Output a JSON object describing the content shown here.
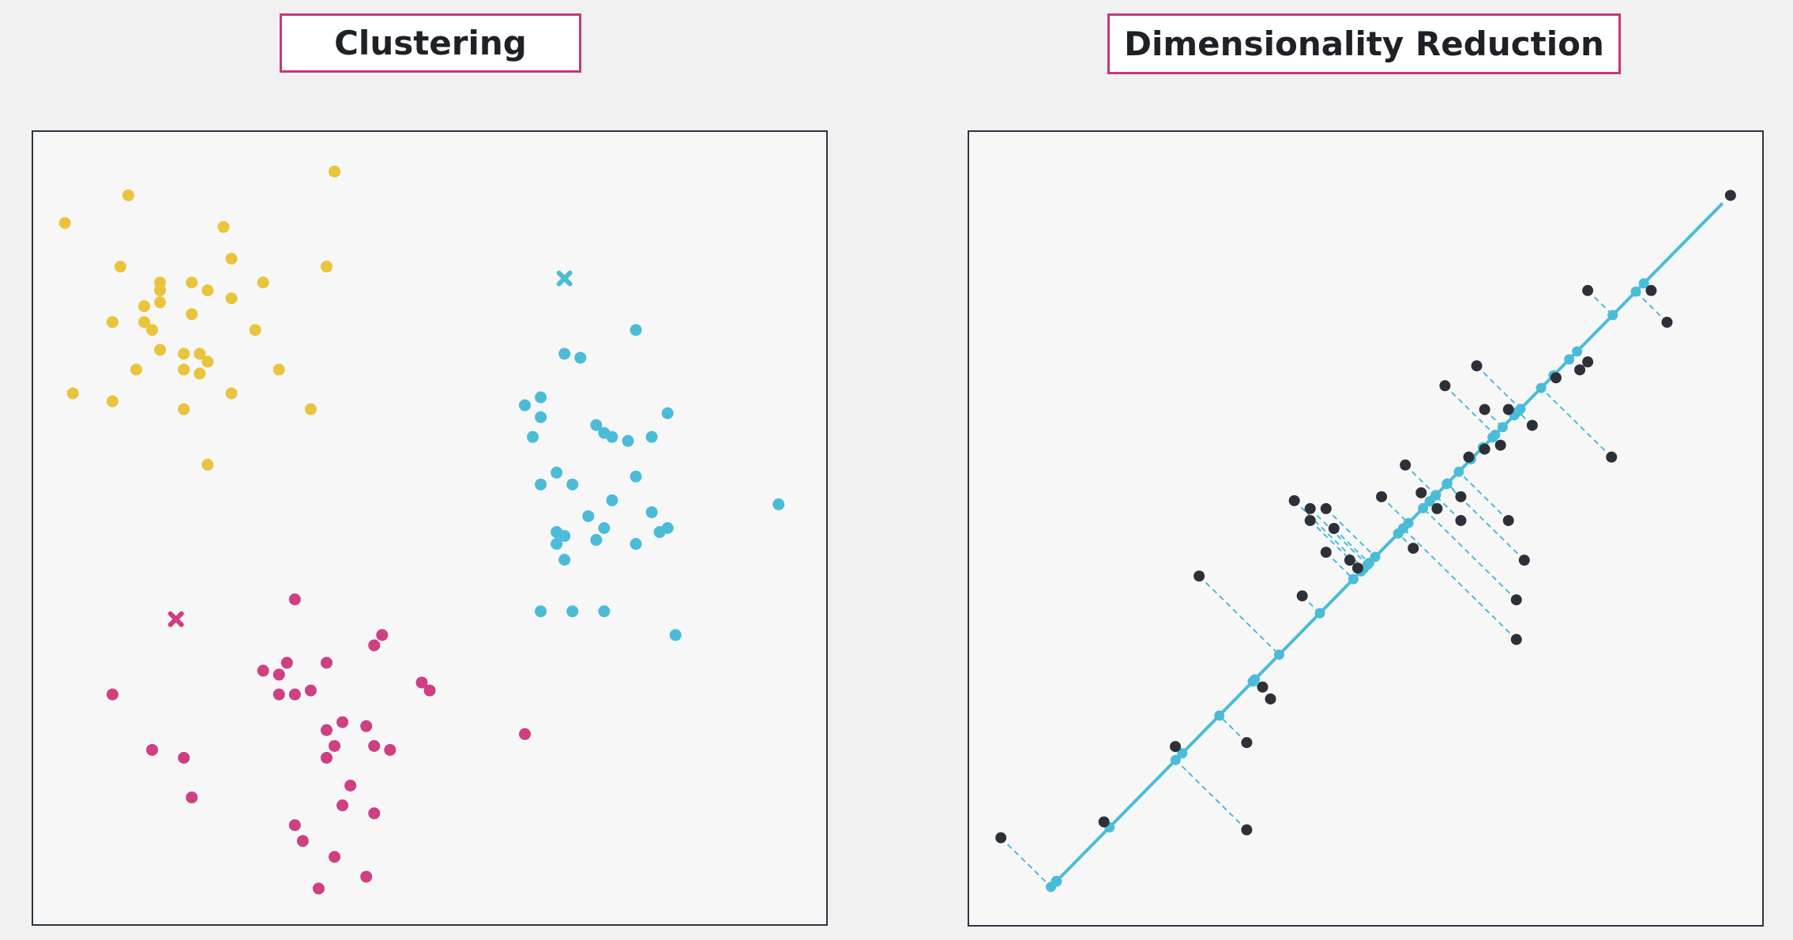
{
  "titles": {
    "left": "Clustering",
    "right": "Dimensionality Reduction"
  },
  "colors": {
    "yellow": "#e9c43c",
    "cyan": "#4bbcd8",
    "magenta": "#cf3f82",
    "dark": "#2d3038",
    "title_border": "#c4387a",
    "panel_border": "#2b3440"
  },
  "clustering": {
    "clusters": [
      {
        "color_key": "yellow",
        "centroid": null,
        "points": [
          [
            0.38,
            0.05
          ],
          [
            0.12,
            0.08
          ],
          [
            0.04,
            0.115
          ],
          [
            0.24,
            0.12
          ],
          [
            0.11,
            0.17
          ],
          [
            0.25,
            0.16
          ],
          [
            0.37,
            0.17
          ],
          [
            0.16,
            0.19
          ],
          [
            0.2,
            0.19
          ],
          [
            0.29,
            0.19
          ],
          [
            0.22,
            0.2
          ],
          [
            0.16,
            0.2
          ],
          [
            0.25,
            0.21
          ],
          [
            0.14,
            0.22
          ],
          [
            0.16,
            0.215
          ],
          [
            0.2,
            0.23
          ],
          [
            0.1,
            0.24
          ],
          [
            0.14,
            0.24
          ],
          [
            0.15,
            0.25
          ],
          [
            0.28,
            0.25
          ],
          [
            0.16,
            0.275
          ],
          [
            0.19,
            0.28
          ],
          [
            0.21,
            0.28
          ],
          [
            0.22,
            0.29
          ],
          [
            0.19,
            0.3
          ],
          [
            0.31,
            0.3
          ],
          [
            0.13,
            0.3
          ],
          [
            0.21,
            0.305
          ],
          [
            0.05,
            0.33
          ],
          [
            0.25,
            0.33
          ],
          [
            0.1,
            0.34
          ],
          [
            0.19,
            0.35
          ],
          [
            0.35,
            0.35
          ],
          [
            0.22,
            0.42
          ]
        ]
      },
      {
        "color_key": "cyan",
        "centroid": [
          0.67,
          0.185
        ],
        "points": [
          [
            0.76,
            0.25
          ],
          [
            0.67,
            0.28
          ],
          [
            0.69,
            0.285
          ],
          [
            0.64,
            0.335
          ],
          [
            0.62,
            0.345
          ],
          [
            0.64,
            0.36
          ],
          [
            0.8,
            0.355
          ],
          [
            0.71,
            0.37
          ],
          [
            0.72,
            0.38
          ],
          [
            0.73,
            0.385
          ],
          [
            0.75,
            0.39
          ],
          [
            0.78,
            0.385
          ],
          [
            0.63,
            0.385
          ],
          [
            0.66,
            0.43
          ],
          [
            0.76,
            0.435
          ],
          [
            0.64,
            0.445
          ],
          [
            0.68,
            0.445
          ],
          [
            0.73,
            0.465
          ],
          [
            0.94,
            0.47
          ],
          [
            0.78,
            0.48
          ],
          [
            0.7,
            0.485
          ],
          [
            0.72,
            0.5
          ],
          [
            0.66,
            0.505
          ],
          [
            0.67,
            0.51
          ],
          [
            0.79,
            0.505
          ],
          [
            0.8,
            0.5
          ],
          [
            0.71,
            0.515
          ],
          [
            0.76,
            0.52
          ],
          [
            0.66,
            0.52
          ],
          [
            0.67,
            0.54
          ],
          [
            0.68,
            0.605
          ],
          [
            0.64,
            0.605
          ],
          [
            0.72,
            0.605
          ],
          [
            0.81,
            0.635
          ]
        ]
      },
      {
        "color_key": "magenta",
        "centroid": [
          0.18,
          0.615
        ],
        "points": [
          [
            0.33,
            0.59
          ],
          [
            0.44,
            0.635
          ],
          [
            0.43,
            0.648
          ],
          [
            0.32,
            0.67
          ],
          [
            0.37,
            0.67
          ],
          [
            0.29,
            0.68
          ],
          [
            0.31,
            0.685
          ],
          [
            0.49,
            0.695
          ],
          [
            0.5,
            0.705
          ],
          [
            0.1,
            0.71
          ],
          [
            0.31,
            0.71
          ],
          [
            0.33,
            0.71
          ],
          [
            0.35,
            0.705
          ],
          [
            0.39,
            0.745
          ],
          [
            0.42,
            0.75
          ],
          [
            0.37,
            0.755
          ],
          [
            0.43,
            0.775
          ],
          [
            0.45,
            0.78
          ],
          [
            0.38,
            0.775
          ],
          [
            0.37,
            0.79
          ],
          [
            0.62,
            0.76
          ],
          [
            0.15,
            0.78
          ],
          [
            0.19,
            0.79
          ],
          [
            0.4,
            0.825
          ],
          [
            0.2,
            0.84
          ],
          [
            0.39,
            0.85
          ],
          [
            0.43,
            0.86
          ],
          [
            0.33,
            0.875
          ],
          [
            0.34,
            0.895
          ],
          [
            0.38,
            0.915
          ],
          [
            0.42,
            0.94
          ],
          [
            0.36,
            0.955
          ]
        ]
      }
    ]
  },
  "dimensionality_reduction": {
    "line": [
      [
        0.11,
        0.945
      ],
      [
        0.95,
        0.09
      ]
    ],
    "points": [
      [
        0.04,
        0.89
      ],
      [
        0.17,
        0.87
      ],
      [
        0.35,
        0.88
      ],
      [
        0.26,
        0.775
      ],
      [
        0.35,
        0.77
      ],
      [
        0.38,
        0.715
      ],
      [
        0.37,
        0.7
      ],
      [
        0.42,
        0.585
      ],
      [
        0.45,
        0.53
      ],
      [
        0.49,
        0.55
      ],
      [
        0.41,
        0.465
      ],
      [
        0.43,
        0.475
      ],
      [
        0.45,
        0.475
      ],
      [
        0.46,
        0.5
      ],
      [
        0.48,
        0.54
      ],
      [
        0.57,
        0.455
      ],
      [
        0.62,
        0.46
      ],
      [
        0.59,
        0.475
      ],
      [
        0.62,
        0.49
      ],
      [
        0.56,
        0.525
      ],
      [
        0.68,
        0.49
      ],
      [
        0.7,
        0.54
      ],
      [
        0.63,
        0.41
      ],
      [
        0.65,
        0.4
      ],
      [
        0.71,
        0.37
      ],
      [
        0.64,
        0.295
      ],
      [
        0.68,
        0.35
      ],
      [
        0.81,
        0.41
      ],
      [
        0.55,
        0.42
      ],
      [
        0.52,
        0.46
      ],
      [
        0.67,
        0.395
      ],
      [
        0.74,
        0.31
      ],
      [
        0.77,
        0.3
      ],
      [
        0.78,
        0.29
      ],
      [
        0.78,
        0.2
      ],
      [
        0.6,
        0.32
      ],
      [
        0.65,
        0.35
      ],
      [
        0.69,
        0.59
      ],
      [
        0.69,
        0.64
      ],
      [
        0.86,
        0.2
      ],
      [
        0.88,
        0.24
      ],
      [
        0.96,
        0.08
      ],
      [
        0.29,
        0.56
      ],
      [
        0.43,
        0.49
      ]
    ]
  }
}
